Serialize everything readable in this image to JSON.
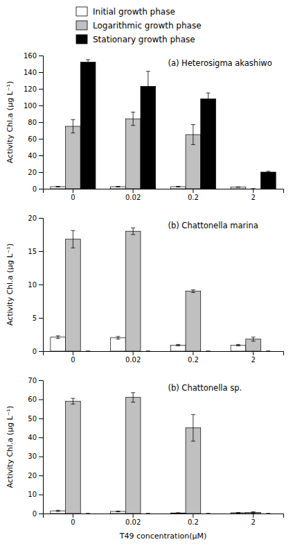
{
  "chart_data": [
    {
      "type": "bar",
      "annotation": "(a) Heterosigma akashiwo",
      "ylabel": "Activity Chl.a (µg L⁻¹)",
      "categories": [
        "0",
        "0.02",
        "0.2",
        "2"
      ],
      "series": [
        {
          "name": "Initial growth phase",
          "color": "white",
          "values": [
            2.5,
            2.5,
            2.5,
            2.0
          ],
          "errors": [
            0.4,
            0.4,
            0.4,
            0.3
          ]
        },
        {
          "name": "Logarithmic growth phase",
          "color": "#c0c0c0",
          "values": [
            75.0,
            84.0,
            65.0,
            0.0
          ],
          "errors": [
            8.0,
            8.0,
            12.0,
            0.0
          ]
        },
        {
          "name": "Stationary growth phase",
          "color": "black",
          "values": [
            152.0,
            123.0,
            108.0,
            20.0
          ],
          "errors": [
            3.0,
            18.0,
            7.0,
            1.0
          ]
        }
      ],
      "ylim": [
        0,
        160
      ],
      "yticks": [
        0,
        20,
        40,
        60,
        80,
        100,
        120,
        140,
        160
      ],
      "legend": "top"
    },
    {
      "type": "bar",
      "annotation": "(b) Chattonella marina",
      "ylabel": "Activity Chl.a (µg L⁻¹)",
      "categories": [
        "0",
        "0.02",
        "0.2",
        "2"
      ],
      "series": [
        {
          "name": "Initial growth phase",
          "color": "white",
          "values": [
            2.1,
            2.0,
            0.9,
            0.9
          ],
          "errors": [
            0.2,
            0.2,
            0.1,
            0.1
          ]
        },
        {
          "name": "Logarithmic growth phase",
          "color": "#c0c0c0",
          "values": [
            16.8,
            18.0,
            9.0,
            1.8
          ],
          "errors": [
            1.3,
            0.5,
            0.2,
            0.3
          ]
        },
        {
          "name": "Stationary growth phase",
          "color": "black",
          "values": [
            0.0,
            0.0,
            0.0,
            0.0
          ],
          "errors": [
            0.0,
            0.0,
            0.0,
            0.0
          ]
        }
      ],
      "ylim": [
        0,
        20
      ],
      "yticks": [
        0,
        5,
        10,
        15,
        20
      ]
    },
    {
      "type": "bar",
      "annotation": "(b) Chattonella sp.",
      "ylabel": "Activity Chl.a (µg L⁻¹)",
      "xlabel": "T49 concentration(µM)",
      "categories": [
        "0",
        "0.02",
        "0.2",
        "2"
      ],
      "series": [
        {
          "name": "Initial growth phase",
          "color": "white",
          "values": [
            1.4,
            1.1,
            0.3,
            0.4
          ],
          "errors": [
            0.3,
            0.2,
            0.05,
            0.15
          ]
        },
        {
          "name": "Logarithmic growth phase",
          "color": "#c0c0c0",
          "values": [
            59.0,
            61.0,
            45.0,
            0.6
          ],
          "errors": [
            1.5,
            2.5,
            7.0,
            0.3
          ]
        },
        {
          "name": "Stationary growth phase",
          "color": "black",
          "values": [
            0.0,
            0.0,
            0.0,
            0.0
          ],
          "errors": [
            0.0,
            0.0,
            0.0,
            0.0
          ]
        }
      ],
      "ylim": [
        0,
        70
      ],
      "yticks": [
        0,
        10,
        20,
        30,
        40,
        50,
        60,
        70
      ]
    }
  ]
}
